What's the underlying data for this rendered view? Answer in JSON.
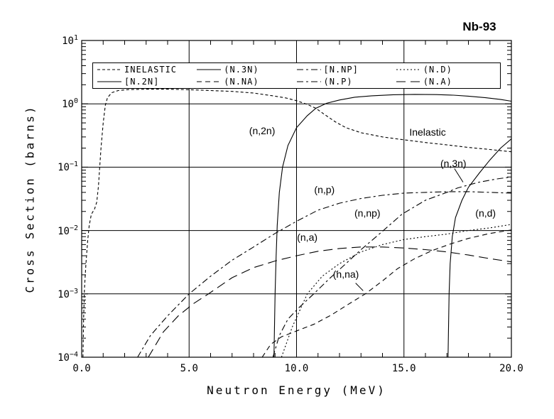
{
  "title": "Nb-93",
  "colors": {
    "line": "#000000",
    "background": "#ffffff"
  },
  "chart_data": {
    "type": "line",
    "title": "Nb-93",
    "xlabel": "Neutron Energy (MeV)",
    "ylabel": "Cross Section (barns)",
    "xlim": [
      0,
      20
    ],
    "ylog": true,
    "ylim": [
      0.0001,
      10
    ],
    "grid": true,
    "x_ticks": [
      {
        "value": 0,
        "label": "0.0"
      },
      {
        "value": 5,
        "label": "5.0"
      },
      {
        "value": 10,
        "label": "10.0"
      },
      {
        "value": 15,
        "label": "15.0"
      },
      {
        "value": 20,
        "label": "20.0"
      }
    ],
    "y_tick_exponents": [
      1,
      0,
      -1,
      -2,
      -3,
      -4
    ],
    "legend": {
      "position": "top-inside",
      "entries": [
        {
          "label": "INELASTIC",
          "dash": "4 3"
        },
        {
          "label": "(N.3N)",
          "dash": ""
        },
        {
          "label": "[N.NP]",
          "dash": "9 4 3 4"
        },
        {
          "label": "(N.D)",
          "dash": "2 3"
        },
        {
          "label": "[N.2N]",
          "dash": ""
        },
        {
          "label": "(N.NA)",
          "dash": "7 5"
        },
        {
          "label": "(N.P)",
          "dash": "9 4 3 4"
        },
        {
          "label": "(N.A)",
          "dash": "13 7"
        }
      ]
    },
    "series": [
      {
        "name": "inelastic",
        "legend_label": "INELASTIC",
        "dash": "4 3",
        "points": [
          [
            0.06,
            0.0001
          ],
          [
            0.09,
            0.0004
          ],
          [
            0.13,
            0.0012
          ],
          [
            0.2,
            0.003
          ],
          [
            0.28,
            0.007
          ],
          [
            0.35,
            0.012
          ],
          [
            0.45,
            0.018
          ],
          [
            0.6,
            0.022
          ],
          [
            0.7,
            0.028
          ],
          [
            0.78,
            0.05
          ],
          [
            0.83,
            0.09
          ],
          [
            0.9,
            0.2
          ],
          [
            1.0,
            0.5
          ],
          [
            1.1,
            0.95
          ],
          [
            1.2,
            1.25
          ],
          [
            1.4,
            1.5
          ],
          [
            1.7,
            1.62
          ],
          [
            2.2,
            1.68
          ],
          [
            3,
            1.7
          ],
          [
            4,
            1.7
          ],
          [
            5,
            1.67
          ],
          [
            6,
            1.62
          ],
          [
            7,
            1.57
          ],
          [
            8,
            1.48
          ],
          [
            8.5,
            1.4
          ],
          [
            9,
            1.32
          ],
          [
            9.5,
            1.24
          ],
          [
            10,
            1.12
          ],
          [
            10.5,
            0.98
          ],
          [
            10.9,
            0.85
          ],
          [
            11.3,
            0.68
          ],
          [
            11.8,
            0.52
          ],
          [
            12.3,
            0.42
          ],
          [
            13,
            0.35
          ],
          [
            14,
            0.3
          ],
          [
            15,
            0.27
          ],
          [
            16,
            0.245
          ],
          [
            17,
            0.225
          ],
          [
            18,
            0.205
          ],
          [
            19,
            0.19
          ],
          [
            20,
            0.175
          ]
        ]
      },
      {
        "name": "n2n",
        "legend_label": "[N.2N]",
        "dash": "",
        "points": [
          [
            8.95,
            0.0001
          ],
          [
            9.0,
            0.001
          ],
          [
            9.05,
            0.004
          ],
          [
            9.1,
            0.012
          ],
          [
            9.2,
            0.04
          ],
          [
            9.35,
            0.1
          ],
          [
            9.6,
            0.22
          ],
          [
            10,
            0.42
          ],
          [
            10.5,
            0.65
          ],
          [
            10.9,
            0.85
          ],
          [
            11.4,
            1.02
          ],
          [
            12,
            1.15
          ],
          [
            12.7,
            1.27
          ],
          [
            13.5,
            1.34
          ],
          [
            14.5,
            1.39
          ],
          [
            15.5,
            1.41
          ],
          [
            16.5,
            1.4
          ],
          [
            17.3,
            1.37
          ],
          [
            18,
            1.32
          ],
          [
            18.8,
            1.25
          ],
          [
            19.5,
            1.17
          ],
          [
            20,
            1.1
          ]
        ]
      },
      {
        "name": "n3n",
        "legend_label": "(N.3N)",
        "dash": "",
        "points": [
          [
            17.05,
            0.0001
          ],
          [
            17.1,
            0.001
          ],
          [
            17.15,
            0.003
          ],
          [
            17.25,
            0.008
          ],
          [
            17.4,
            0.016
          ],
          [
            17.7,
            0.03
          ],
          [
            18,
            0.048
          ],
          [
            18.5,
            0.08
          ],
          [
            19,
            0.13
          ],
          [
            19.5,
            0.2
          ],
          [
            20,
            0.28
          ]
        ]
      },
      {
        "name": "nnp",
        "legend_label": "[N.NP]",
        "dash": "9 4 3 4",
        "points": [
          [
            8.9,
            0.0001
          ],
          [
            9.2,
            0.00022
          ],
          [
            9.6,
            0.0004
          ],
          [
            10.1,
            0.0006
          ],
          [
            10.8,
            0.001
          ],
          [
            11.5,
            0.0017
          ],
          [
            12.2,
            0.0028
          ],
          [
            13,
            0.005
          ],
          [
            13.8,
            0.0085
          ],
          [
            14.9,
            0.018
          ],
          [
            16,
            0.03
          ],
          [
            17,
            0.04
          ],
          [
            17.5,
            0.047
          ],
          [
            18.5,
            0.058
          ],
          [
            19.3,
            0.065
          ],
          [
            20,
            0.07
          ]
        ]
      },
      {
        "name": "np",
        "legend_label": "(N.P)",
        "dash": "9 4 3 4",
        "points": [
          [
            2.6,
            0.0001
          ],
          [
            3.2,
            0.00022
          ],
          [
            4,
            0.00045
          ],
          [
            5,
            0.001
          ],
          [
            6,
            0.0019
          ],
          [
            7,
            0.0034
          ],
          [
            8,
            0.0055
          ],
          [
            9,
            0.009
          ],
          [
            10,
            0.014
          ],
          [
            11,
            0.021
          ],
          [
            12,
            0.027
          ],
          [
            13,
            0.032
          ],
          [
            14,
            0.036
          ],
          [
            15,
            0.039
          ],
          [
            16,
            0.04
          ],
          [
            17,
            0.041
          ],
          [
            18,
            0.041
          ],
          [
            19,
            0.04
          ],
          [
            20,
            0.039
          ]
        ]
      },
      {
        "name": "nd",
        "legend_label": "(N.D)",
        "dash": "2 3",
        "points": [
          [
            9.3,
            0.0001
          ],
          [
            9.8,
            0.0003
          ],
          [
            10.5,
            0.001
          ],
          [
            11.2,
            0.0019
          ],
          [
            12,
            0.003
          ],
          [
            13,
            0.0046
          ],
          [
            14,
            0.006
          ],
          [
            15,
            0.0072
          ],
          [
            16,
            0.008
          ],
          [
            17,
            0.0088
          ],
          [
            18,
            0.01
          ],
          [
            19,
            0.011
          ],
          [
            20,
            0.0125
          ]
        ]
      },
      {
        "name": "na",
        "legend_label": "(N.A)",
        "dash": "13 7",
        "points": [
          [
            3.1,
            0.0001
          ],
          [
            3.8,
            0.00025
          ],
          [
            4.5,
            0.00045
          ],
          [
            5.2,
            0.0007
          ],
          [
            5.9,
            0.001
          ],
          [
            7,
            0.0018
          ],
          [
            8,
            0.0026
          ],
          [
            9,
            0.0033
          ],
          [
            10,
            0.004
          ],
          [
            11,
            0.0047
          ],
          [
            12,
            0.0052
          ],
          [
            13,
            0.0055
          ],
          [
            14,
            0.0055
          ],
          [
            15,
            0.0053
          ],
          [
            16,
            0.005
          ],
          [
            17,
            0.0046
          ],
          [
            18,
            0.0041
          ],
          [
            19,
            0.0036
          ],
          [
            20,
            0.0032
          ]
        ]
      },
      {
        "name": "nna",
        "legend_label": "(N.NA)",
        "dash": "7 5",
        "points": [
          [
            8.4,
            0.0001
          ],
          [
            8.8,
            0.00016
          ],
          [
            9.3,
            0.00021
          ],
          [
            10,
            0.00026
          ],
          [
            10.8,
            0.00033
          ],
          [
            11.6,
            0.00046
          ],
          [
            12.4,
            0.00068
          ],
          [
            13.2,
            0.001
          ],
          [
            14,
            0.0016
          ],
          [
            14.7,
            0.0025
          ],
          [
            15.5,
            0.0036
          ],
          [
            16.3,
            0.0048
          ],
          [
            17.2,
            0.0062
          ],
          [
            18,
            0.0075
          ],
          [
            19,
            0.009
          ],
          [
            20,
            0.0102
          ]
        ]
      }
    ],
    "annotations": [
      {
        "text": "(n,2n)",
        "x": 8.4,
        "y": 0.38
      },
      {
        "text": "Inelastic",
        "x": 16.1,
        "y": 0.36
      },
      {
        "text": "(n,3n)",
        "x": 17.3,
        "y": 0.115,
        "leader": [
          [
            17.35,
            0.095
          ],
          [
            17.75,
            0.058
          ]
        ]
      },
      {
        "text": "(n,p)",
        "x": 11.3,
        "y": 0.044
      },
      {
        "text": "(n,np)",
        "x": 13.3,
        "y": 0.019
      },
      {
        "text": "(n,a)",
        "x": 10.5,
        "y": 0.0079
      },
      {
        "text": "(n,na)",
        "x": 12.3,
        "y": 0.00205,
        "leader": [
          [
            12.75,
            0.00148
          ],
          [
            13.1,
            0.00112
          ]
        ]
      },
      {
        "text": "(n,d)",
        "x": 18.8,
        "y": 0.019
      }
    ]
  }
}
